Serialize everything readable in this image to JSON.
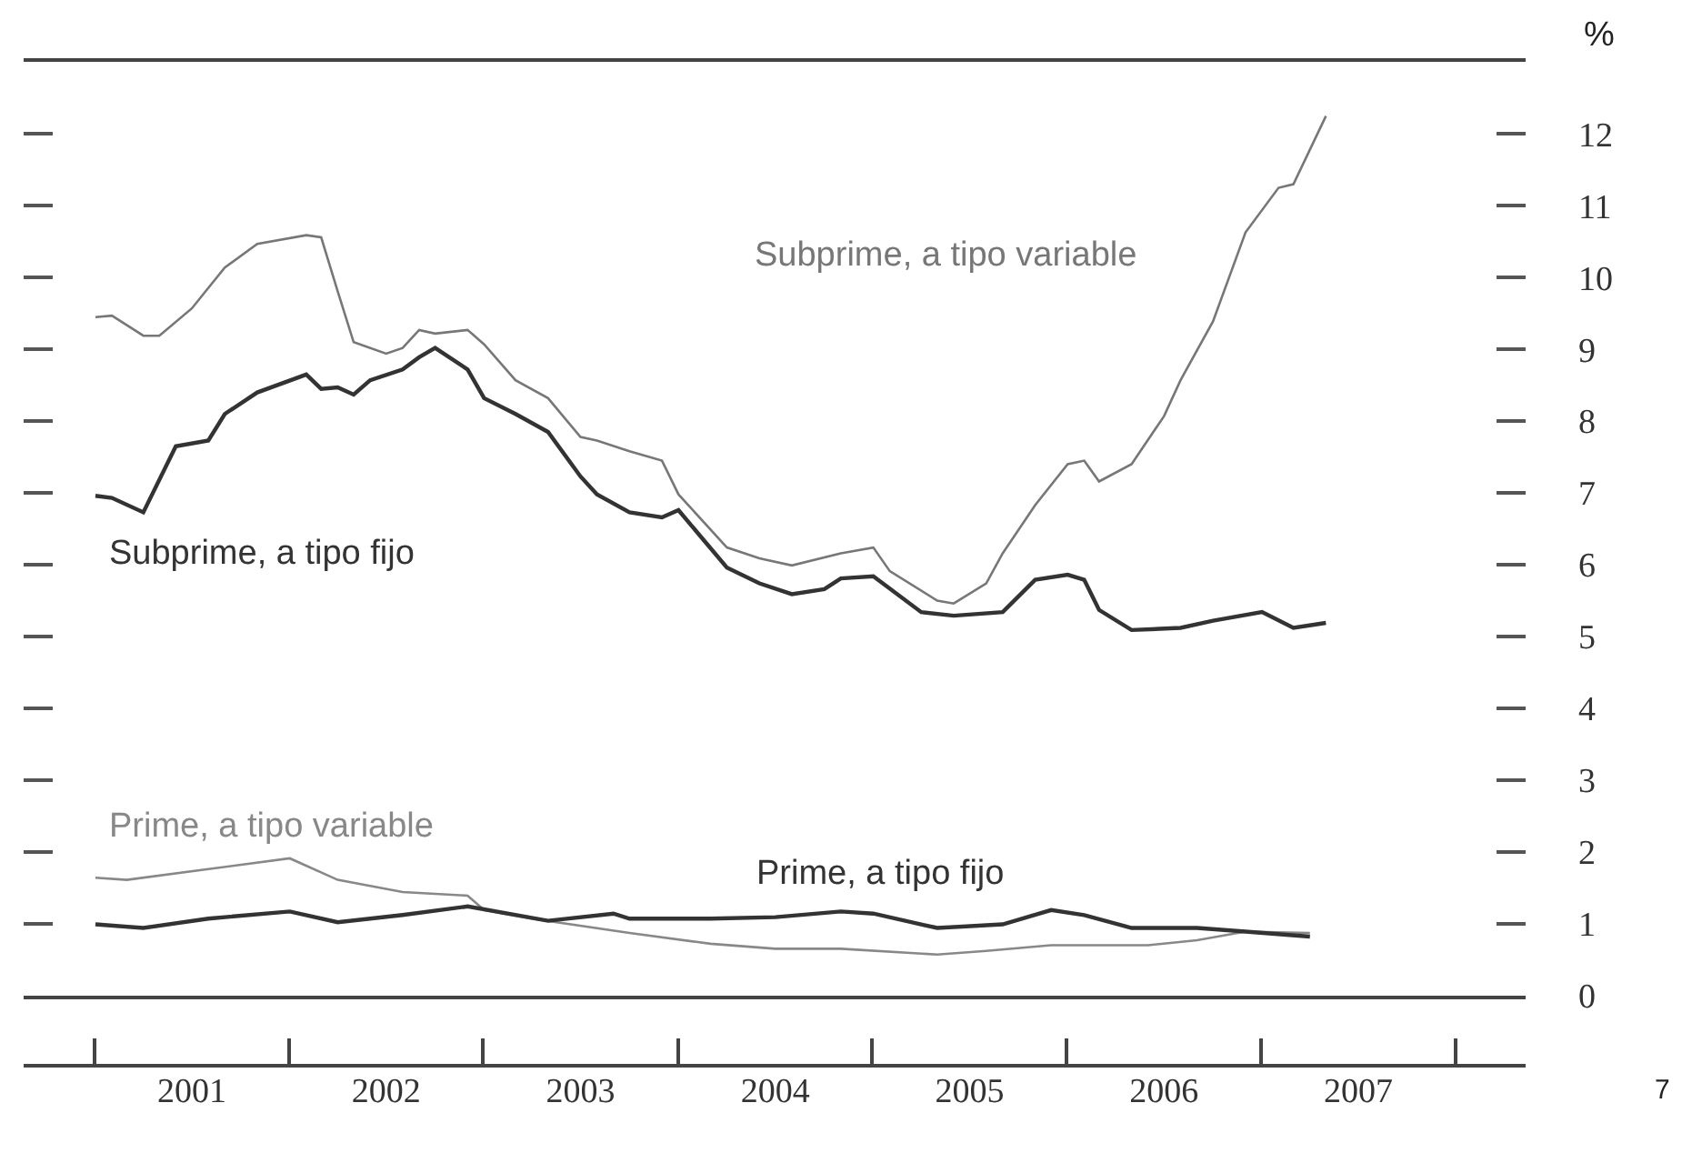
{
  "chart_data": {
    "type": "line",
    "ylabel": "%",
    "annotations": [
      "7"
    ],
    "legend": false,
    "xlim": [
      "2000-08-19",
      "2008-05-10"
    ],
    "xticks": [
      {
        "value": "2001-07-01",
        "label": "2001"
      },
      {
        "value": "2002-07-01",
        "label": "2002"
      },
      {
        "value": "2003-07-01",
        "label": "2003"
      },
      {
        "value": "2004-07-01",
        "label": "2004"
      },
      {
        "value": "2005-07-01",
        "label": "2005"
      },
      {
        "value": "2006-07-01",
        "label": "2006"
      },
      {
        "value": "2007-07-01",
        "label": "2007"
      }
    ],
    "ylim": [
      0,
      13
    ],
    "yticks": [
      0,
      1,
      2,
      3,
      4,
      5,
      6,
      7,
      8,
      9,
      10,
      11,
      12
    ],
    "series": [
      {
        "name": "Subprime, a tipo variable",
        "color": "#777777",
        "x": [
          "2001-01",
          "2001-02",
          "2001-04",
          "2001-05",
          "2001-07",
          "2001-09",
          "2001-11",
          "2002-02",
          "2002-03",
          "2002-04",
          "2002-05",
          "2002-07",
          "2002-08",
          "2002-09",
          "2002-10",
          "2002-12",
          "2003-01",
          "2003-03",
          "2003-05",
          "2003-07",
          "2003-08",
          "2003-10",
          "2003-12",
          "2004-01",
          "2004-04",
          "2004-06",
          "2004-08",
          "2004-11",
          "2005-01",
          "2005-02",
          "2005-05",
          "2005-06",
          "2005-08",
          "2005-09",
          "2005-11",
          "2006-01",
          "2006-02",
          "2006-03",
          "2006-05",
          "2006-07",
          "2006-08",
          "2006-10",
          "2006-12",
          "2007-02",
          "2007-03",
          "2007-05"
        ],
        "values": [
          9.45,
          9.47,
          9.19,
          9.19,
          9.57,
          10.14,
          10.47,
          10.59,
          10.56,
          9.81,
          9.1,
          8.94,
          9.02,
          9.27,
          9.22,
          9.27,
          9.07,
          8.57,
          8.32,
          7.78,
          7.73,
          7.58,
          7.45,
          6.98,
          6.24,
          6.09,
          5.99,
          6.16,
          6.24,
          5.91,
          5.5,
          5.46,
          5.74,
          6.16,
          6.83,
          7.4,
          7.45,
          7.16,
          7.4,
          8.07,
          8.57,
          9.39,
          10.63,
          11.25,
          11.3,
          12.25
        ]
      },
      {
        "name": "Subprime, a tipo fijo",
        "color": "#333333",
        "x": [
          "2001-01",
          "2001-02",
          "2001-04",
          "2001-06",
          "2001-08",
          "2001-09",
          "2001-11",
          "2002-02",
          "2002-03",
          "2002-04",
          "2002-05",
          "2002-06",
          "2002-08",
          "2002-09",
          "2002-10",
          "2002-12",
          "2003-01",
          "2003-03",
          "2003-05",
          "2003-07",
          "2003-08",
          "2003-10",
          "2003-12",
          "2004-01",
          "2004-04",
          "2004-06",
          "2004-08",
          "2004-10",
          "2004-11",
          "2005-01",
          "2005-04",
          "2005-06",
          "2005-09",
          "2005-11",
          "2006-01",
          "2006-02",
          "2006-03",
          "2006-05",
          "2006-08",
          "2006-10",
          "2007-01",
          "2007-03",
          "2007-05"
        ],
        "values": [
          6.96,
          6.93,
          6.73,
          7.65,
          7.73,
          8.1,
          8.4,
          8.65,
          8.45,
          8.47,
          8.37,
          8.57,
          8.72,
          8.89,
          9.02,
          8.72,
          8.32,
          8.1,
          7.85,
          7.23,
          6.98,
          6.73,
          6.66,
          6.76,
          5.96,
          5.74,
          5.59,
          5.66,
          5.81,
          5.84,
          5.34,
          5.29,
          5.34,
          5.79,
          5.86,
          5.79,
          5.37,
          5.09,
          5.12,
          5.22,
          5.34,
          5.12,
          5.19
        ]
      },
      {
        "name": "Prime, a tipo variable",
        "color": "#888888",
        "x": [
          "2001-01",
          "2001-03",
          "2001-08",
          "2002-01",
          "2002-04",
          "2002-08",
          "2002-12",
          "2003-01",
          "2003-04",
          "2003-10",
          "2004-03",
          "2004-07",
          "2004-11",
          "2005-05",
          "2005-08",
          "2005-12",
          "2006-06",
          "2006-09",
          "2006-12",
          "2007-04"
        ],
        "values": [
          1.64,
          1.61,
          1.76,
          1.91,
          1.61,
          1.44,
          1.39,
          1.19,
          1.07,
          0.87,
          0.72,
          0.65,
          0.65,
          0.57,
          0.62,
          0.7,
          0.7,
          0.77,
          0.89,
          0.87
        ]
      },
      {
        "name": "Prime, a tipo fijo",
        "color": "#333333",
        "x": [
          "2001-01",
          "2001-04",
          "2001-08",
          "2002-01",
          "2002-04",
          "2002-08",
          "2002-12",
          "2003-05",
          "2003-09",
          "2003-10",
          "2004-03",
          "2004-07",
          "2004-11",
          "2005-01",
          "2005-05",
          "2005-09",
          "2005-12",
          "2006-02",
          "2006-05",
          "2006-09",
          "2006-12",
          "2007-04"
        ],
        "values": [
          0.99,
          0.94,
          1.07,
          1.17,
          1.02,
          1.12,
          1.24,
          1.04,
          1.14,
          1.07,
          1.07,
          1.09,
          1.17,
          1.14,
          0.94,
          0.99,
          1.19,
          1.12,
          0.94,
          0.94,
          0.89,
          0.82
        ]
      }
    ]
  }
}
